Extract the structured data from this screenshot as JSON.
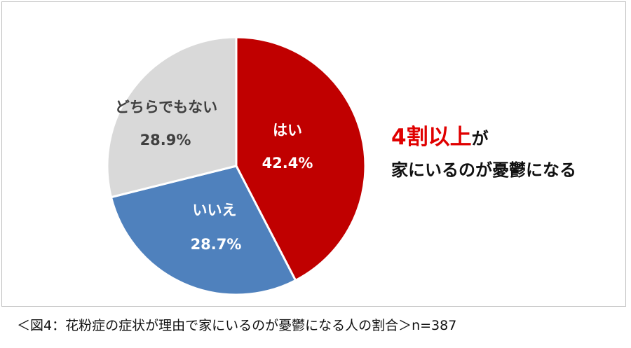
{
  "chart_data": {
    "type": "pie",
    "start": "12 o'clock, clockwise",
    "slices": [
      {
        "label": "はい",
        "value": 42.4,
        "display": "42.4%",
        "color": "#C00000",
        "text_color": "#FFFFFF"
      },
      {
        "label": "いいえ",
        "value": 28.7,
        "display": "28.7%",
        "color": "#4F81BD",
        "text_color": "#FFFFFF"
      },
      {
        "label": "どちらでもない",
        "value": 28.9,
        "display": "28.9%",
        "color": "#D9D9D9",
        "text_color": "#404040"
      }
    ]
  },
  "headline": {
    "emphasis": "4割以上",
    "emphasis_color": "#E00000",
    "suffix": "が",
    "line2": "家にいるのが憂鬱になる"
  },
  "caption": "＜図4：花粉症の症状が理由で家にいるのが憂鬱になる人の割合＞n=387"
}
